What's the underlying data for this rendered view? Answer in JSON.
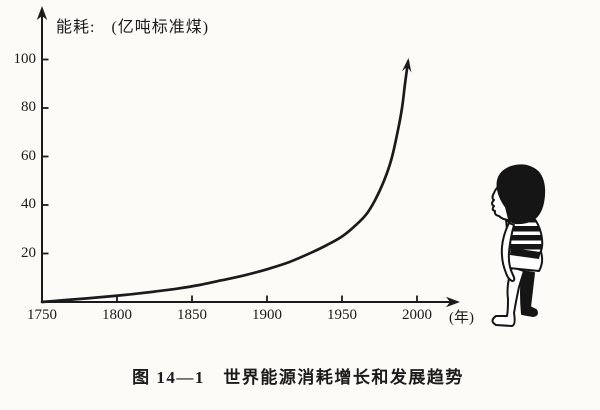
{
  "figure": {
    "energy_label": "能耗:",
    "energy_unit": "(亿吨标准煤)",
    "year_unit": "(年)",
    "caption": "图 14—1　世界能源消耗增长和发展趋势",
    "illustration": "child-in-striped-shirt-watching-curve"
  },
  "chart_data": {
    "type": "line",
    "title": "世界能源消耗增长和发展趋势",
    "xlabel": "(年)",
    "ylabel": "能耗: (亿吨标准煤)",
    "xlim": [
      1750,
      2027
    ],
    "ylim": [
      0,
      120
    ],
    "grid": false,
    "end_arrow": true,
    "ink_color": "#1b1b1b",
    "x_ticks": [
      {
        "year": 1750,
        "label": "1750",
        "tick": false
      },
      {
        "year": 1800,
        "label": "1800",
        "tick": true
      },
      {
        "year": 1850,
        "label": "1850",
        "tick": true
      },
      {
        "year": 1900,
        "label": "1900",
        "tick": true
      },
      {
        "year": 1950,
        "label": "1950",
        "tick": true
      },
      {
        "year": 2000,
        "label": "2000",
        "tick": true
      }
    ],
    "y_ticks": [
      {
        "value": 20,
        "label": "20"
      },
      {
        "value": 40,
        "label": "40"
      },
      {
        "value": 60,
        "label": "60"
      },
      {
        "value": 80,
        "label": "80"
      },
      {
        "value": 100,
        "label": "100"
      }
    ],
    "series": [
      {
        "name": "世界能源消耗",
        "points": [
          [
            1750,
            0
          ],
          [
            1765,
            0.8
          ],
          [
            1780,
            1.5
          ],
          [
            1795,
            2.3
          ],
          [
            1810,
            3.2
          ],
          [
            1825,
            4.3
          ],
          [
            1840,
            5.5
          ],
          [
            1855,
            7
          ],
          [
            1870,
            9
          ],
          [
            1885,
            11
          ],
          [
            1900,
            13.5
          ],
          [
            1915,
            16.5
          ],
          [
            1930,
            20.5
          ],
          [
            1940,
            23.5
          ],
          [
            1950,
            27
          ],
          [
            1958,
            31
          ],
          [
            1966,
            36
          ],
          [
            1972,
            42
          ],
          [
            1978,
            50
          ],
          [
            1983,
            59
          ],
          [
            1987,
            70
          ],
          [
            1990,
            80
          ],
          [
            1992,
            90
          ],
          [
            1994,
            99
          ]
        ]
      }
    ]
  }
}
